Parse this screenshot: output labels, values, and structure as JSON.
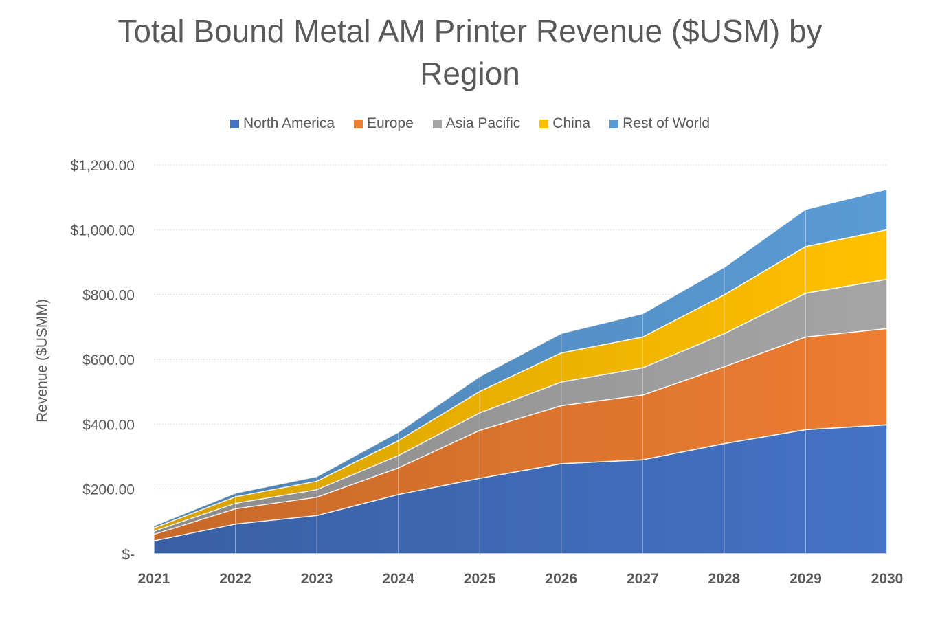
{
  "chart_data": {
    "type": "area",
    "stacked": true,
    "title_line1": "Total Bound Metal AM Printer Revenue ($USM) by",
    "title_line2": "Region",
    "ylabel": "Revenue ($USMM)",
    "xlabel": "",
    "ylim": [
      0,
      1200
    ],
    "yticks": [
      0,
      200,
      400,
      600,
      800,
      1000,
      1200
    ],
    "ytick_labels": [
      "$-",
      "$200.00",
      "$400.00",
      "$600.00",
      "$800.00",
      "$1,000.00",
      "$1,200.00"
    ],
    "categories": [
      "2021",
      "2022",
      "2023",
      "2024",
      "2025",
      "2026",
      "2027",
      "2028",
      "2029",
      "2030"
    ],
    "grid": true,
    "legend_position": "top",
    "series": [
      {
        "name": "North America",
        "color": "#4472C4",
        "values": [
          40,
          92,
          118,
          183,
          233,
          278,
          290,
          340,
          383,
          398
        ]
      },
      {
        "name": "Europe",
        "color": "#ED7D31",
        "values": [
          20,
          47,
          57,
          82,
          148,
          179,
          200,
          237,
          286,
          297
        ]
      },
      {
        "name": "Asia Pacific",
        "color": "#A5A5A5",
        "values": [
          10,
          17,
          23,
          38,
          54,
          73,
          84,
          102,
          135,
          152
        ]
      },
      {
        "name": "China",
        "color": "#FFC000",
        "values": [
          10,
          20,
          26,
          46,
          66,
          90,
          95,
          120,
          144,
          153
        ]
      },
      {
        "name": "Rest of World",
        "color": "#5B9BD5",
        "values": [
          6,
          11,
          14,
          26,
          46,
          60,
          72,
          85,
          115,
          125
        ]
      }
    ]
  }
}
